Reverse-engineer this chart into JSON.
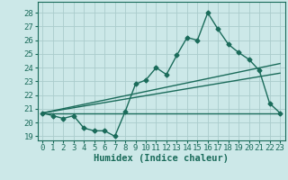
{
  "xlabel": "Humidex (Indice chaleur)",
  "bg_color": "#cce8e8",
  "grid_color": "#aacccc",
  "line_color": "#1a6b5a",
  "xlim": [
    -0.5,
    23.5
  ],
  "ylim": [
    18.7,
    28.8
  ],
  "yticks": [
    19,
    20,
    21,
    22,
    23,
    24,
    25,
    26,
    27,
    28
  ],
  "xticks": [
    0,
    1,
    2,
    3,
    4,
    5,
    6,
    7,
    8,
    9,
    10,
    11,
    12,
    13,
    14,
    15,
    16,
    17,
    18,
    19,
    20,
    21,
    22,
    23
  ],
  "series1_x": [
    0,
    1,
    2,
    3,
    4,
    5,
    6,
    7,
    8,
    9,
    10,
    11,
    12,
    13,
    14,
    15,
    16,
    17,
    18,
    19,
    20,
    21,
    22,
    23
  ],
  "series1_y": [
    20.7,
    20.5,
    20.3,
    20.5,
    19.6,
    19.4,
    19.4,
    19.0,
    20.8,
    22.8,
    23.1,
    24.0,
    23.5,
    24.9,
    26.2,
    26.0,
    28.0,
    26.8,
    25.7,
    25.1,
    24.6,
    23.8,
    21.4,
    20.7
  ],
  "series2_x": [
    0,
    23
  ],
  "series2_y": [
    20.7,
    20.7
  ],
  "series3_x": [
    0,
    23
  ],
  "series3_y": [
    20.7,
    24.3
  ],
  "series4_x": [
    0,
    23
  ],
  "series4_y": [
    20.7,
    23.6
  ],
  "marker_size": 2.5,
  "line_width": 1.0,
  "tick_fontsize": 6.5,
  "xlabel_fontsize": 7.5
}
